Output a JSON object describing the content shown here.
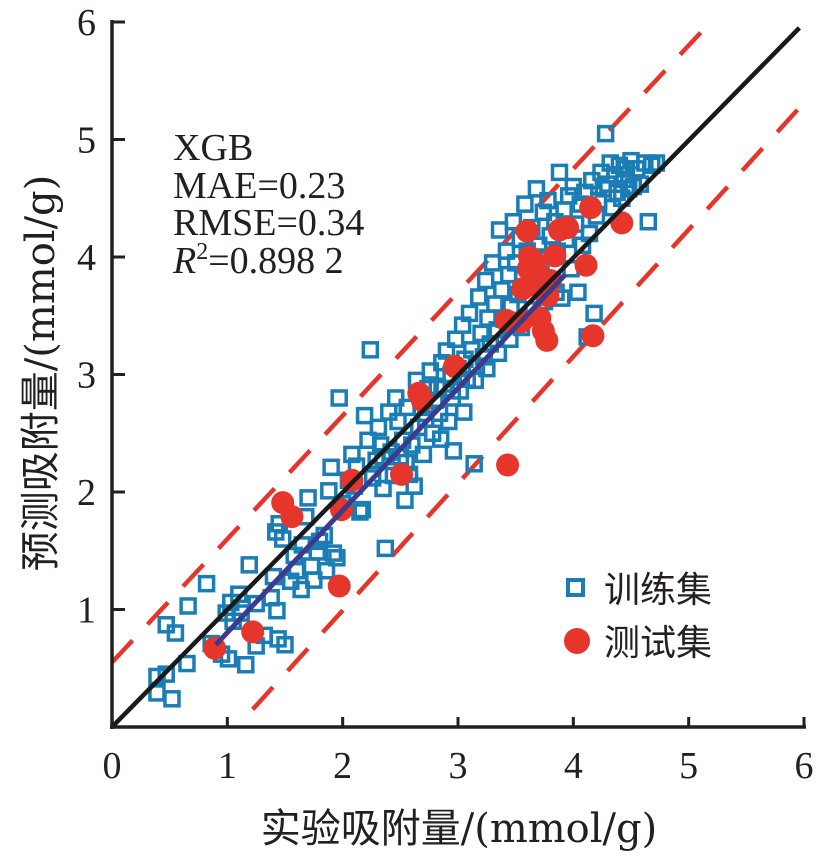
{
  "chart_data": {
    "type": "scatter",
    "title": "",
    "xlabel": "实验吸附量/(mmol/g)",
    "ylabel": "预测吸附量/(mmol/g)",
    "xlim": [
      0,
      6
    ],
    "ylim": [
      0,
      6
    ],
    "xticks": [
      "0",
      "1",
      "2",
      "3",
      "4",
      "5",
      "6"
    ],
    "yticks": [
      "1",
      "2",
      "3",
      "4",
      "5",
      "6"
    ],
    "grid": false,
    "legend_position": "bottom-right",
    "annotation": {
      "model": "XGB",
      "mae": "MAE=0.23",
      "rmse": "RMSE=0.34",
      "r2_symbol": "R",
      "r2_sup": "2",
      "r2_value": "=0.898 2"
    },
    "colors": {
      "train": "#1a7db5",
      "test": "#e6352b",
      "ideal_line": "#1a1a1a",
      "fit_line": "#3b3a8c",
      "bounds": "#e6352b",
      "axis": "#231f20"
    },
    "lines": {
      "ideal": {
        "name": "y=x",
        "x": [
          0,
          5.96
        ],
        "y": [
          0,
          5.95
        ]
      },
      "fit": {
        "name": "fit",
        "x": [
          0.9,
          3.93
        ],
        "y": [
          0.7,
          3.85
        ]
      },
      "upper_bound": {
        "name": "upper",
        "x": [
          0,
          5.19
        ],
        "y": [
          0.55,
          6.0
        ]
      },
      "lower_bound": {
        "name": "lower",
        "x": [
          1.22,
          5.96
        ],
        "y": [
          0.15,
          5.27
        ]
      }
    },
    "series": [
      {
        "name": "训练集",
        "marker": "square",
        "points": [
          [
            0.39,
            0.29
          ],
          [
            0.39,
            0.43
          ],
          [
            0.47,
            0.45
          ],
          [
            0.52,
            0.24
          ],
          [
            0.47,
            0.87
          ],
          [
            0.55,
            0.8
          ],
          [
            0.65,
            0.54
          ],
          [
            0.66,
            1.03
          ],
          [
            0.82,
            1.22
          ],
          [
            0.86,
            0.71
          ],
          [
            0.95,
            0.62
          ],
          [
            0.99,
            0.97
          ],
          [
            1.01,
            0.58
          ],
          [
            1.03,
            1.06
          ],
          [
            1.1,
            1.13
          ],
          [
            1.12,
            0.97
          ],
          [
            1.19,
            1.38
          ],
          [
            1.16,
            0.53
          ],
          [
            1.25,
            0.69
          ],
          [
            1.32,
            0.78
          ],
          [
            1.38,
            1.1
          ],
          [
            1.4,
            1.28
          ],
          [
            1.43,
            0.99
          ],
          [
            1.44,
            0.75
          ],
          [
            1.5,
            0.7
          ],
          [
            1.42,
            1.66
          ],
          [
            1.45,
            1.73
          ],
          [
            1.48,
            1.6
          ],
          [
            1.55,
            1.24
          ],
          [
            1.58,
            1.46
          ],
          [
            1.6,
            1.33
          ],
          [
            1.64,
            1.17
          ],
          [
            1.68,
            1.79
          ],
          [
            1.7,
            1.95
          ],
          [
            1.73,
            1.37
          ],
          [
            1.75,
            1.25
          ],
          [
            1.78,
            1.49
          ],
          [
            1.8,
            1.58
          ],
          [
            1.84,
            1.63
          ],
          [
            1.86,
            1.33
          ],
          [
            1.88,
            2.01
          ],
          [
            1.9,
            2.21
          ],
          [
            1.92,
            1.48
          ],
          [
            1.95,
            1.44
          ],
          [
            1.97,
            2.8
          ],
          [
            2.0,
            1.9
          ],
          [
            2.05,
            2.1
          ],
          [
            2.08,
            2.32
          ],
          [
            2.12,
            2.22
          ],
          [
            2.15,
            1.83
          ],
          [
            2.17,
            1.85
          ],
          [
            2.19,
            2.65
          ],
          [
            2.22,
            2.44
          ],
          [
            2.24,
            3.21
          ],
          [
            2.26,
            2.12
          ],
          [
            2.29,
            2.27
          ],
          [
            2.31,
            2.55
          ],
          [
            2.33,
            2.4
          ],
          [
            2.35,
            2.03
          ],
          [
            2.37,
            1.52
          ],
          [
            2.4,
            2.68
          ],
          [
            2.42,
            2.34
          ],
          [
            2.44,
            2.14
          ],
          [
            2.46,
            2.8
          ],
          [
            2.48,
            2.6
          ],
          [
            2.5,
            2.3
          ],
          [
            2.52,
            2.44
          ],
          [
            2.54,
            1.93
          ],
          [
            2.56,
            2.72
          ],
          [
            2.58,
            2.15
          ],
          [
            2.6,
            2.4
          ],
          [
            2.62,
            2.05
          ],
          [
            2.64,
            2.95
          ],
          [
            2.66,
            2.55
          ],
          [
            2.68,
            2.72
          ],
          [
            2.7,
            2.32
          ],
          [
            2.72,
            2.62
          ],
          [
            2.74,
            2.88
          ],
          [
            2.76,
            3.03
          ],
          [
            2.78,
            2.5
          ],
          [
            2.8,
            2.78
          ],
          [
            2.82,
            2.9
          ],
          [
            2.84,
            2.67
          ],
          [
            2.86,
            3.1
          ],
          [
            2.88,
            2.88
          ],
          [
            2.9,
            3.2
          ],
          [
            2.92,
            2.6
          ],
          [
            2.94,
            3.0
          ],
          [
            2.96,
            2.35
          ],
          [
            2.98,
            3.3
          ],
          [
            3.0,
            3.05
          ],
          [
            3.02,
            2.86
          ],
          [
            3.04,
            3.42
          ],
          [
            3.06,
            3.13
          ],
          [
            3.08,
            2.96
          ],
          [
            3.1,
            3.52
          ],
          [
            3.12,
            3.21
          ],
          [
            3.14,
            2.24
          ],
          [
            3.16,
            3.07
          ],
          [
            3.18,
            3.66
          ],
          [
            3.2,
            3.35
          ],
          [
            3.22,
            3.15
          ],
          [
            3.24,
            3.8
          ],
          [
            3.26,
            3.48
          ],
          [
            3.28,
            3.26
          ],
          [
            3.3,
            3.95
          ],
          [
            3.32,
            3.6
          ],
          [
            3.34,
            3.38
          ],
          [
            3.36,
            4.23
          ],
          [
            3.38,
            3.72
          ],
          [
            3.4,
            3.47
          ],
          [
            3.42,
            4.05
          ],
          [
            3.44,
            3.85
          ],
          [
            3.46,
            3.58
          ],
          [
            3.48,
            4.3
          ],
          [
            3.5,
            3.95
          ],
          [
            3.52,
            3.68
          ],
          [
            3.54,
            4.15
          ],
          [
            3.56,
            3.82
          ],
          [
            3.58,
            4.45
          ],
          [
            3.6,
            4.05
          ],
          [
            3.62,
            3.75
          ],
          [
            3.64,
            4.25
          ],
          [
            3.66,
            3.92
          ],
          [
            3.68,
            4.58
          ],
          [
            3.7,
            4.1
          ],
          [
            3.72,
            3.85
          ],
          [
            3.74,
            4.38
          ],
          [
            3.76,
            4.0
          ],
          [
            3.78,
            4.48
          ],
          [
            3.8,
            4.18
          ],
          [
            3.82,
            3.8
          ],
          [
            3.84,
            4.3
          ],
          [
            3.86,
            4.05
          ],
          [
            3.88,
            4.72
          ],
          [
            3.9,
            3.65
          ],
          [
            3.92,
            4.4
          ],
          [
            3.94,
            4.15
          ],
          [
            3.96,
            4.52
          ],
          [
            3.98,
            3.9
          ],
          [
            4.0,
            4.6
          ],
          [
            4.02,
            4.28
          ],
          [
            4.04,
            3.7
          ],
          [
            4.06,
            4.45
          ],
          [
            4.08,
            4.1
          ],
          [
            4.1,
            4.55
          ],
          [
            4.12,
            3.32
          ],
          [
            4.14,
            4.2
          ],
          [
            4.16,
            4.65
          ],
          [
            4.18,
            3.52
          ],
          [
            4.2,
            4.35
          ],
          [
            4.22,
            4.48
          ],
          [
            4.24,
            4.72
          ],
          [
            4.26,
            4.58
          ],
          [
            4.28,
            5.05
          ],
          [
            4.3,
            4.62
          ],
          [
            4.32,
            4.8
          ],
          [
            4.34,
            4.42
          ],
          [
            4.36,
            4.7
          ],
          [
            4.38,
            4.55
          ],
          [
            4.4,
            4.78
          ],
          [
            4.42,
            4.5
          ],
          [
            4.44,
            4.66
          ],
          [
            4.46,
            4.75
          ],
          [
            4.48,
            4.58
          ],
          [
            4.5,
            4.82
          ],
          [
            4.52,
            4.6
          ],
          [
            4.55,
            4.75
          ],
          [
            4.58,
            4.62
          ],
          [
            4.62,
            4.8
          ],
          [
            4.65,
            4.3
          ],
          [
            4.68,
            4.78
          ],
          [
            4.72,
            4.8
          ],
          [
            3.05,
            2.68
          ],
          [
            3.15,
            2.95
          ],
          [
            3.25,
            3.05
          ],
          [
            3.35,
            3.18
          ],
          [
            2.95,
            2.8
          ],
          [
            2.85,
            2.45
          ],
          [
            2.55,
            2.25
          ],
          [
            2.35,
            2.3
          ],
          [
            2.1,
            2.05
          ],
          [
            1.65,
            1.55
          ],
          [
            1.25,
            1.05
          ],
          [
            1.05,
            0.9
          ],
          [
            3.45,
            3.3
          ],
          [
            3.55,
            3.4
          ],
          [
            3.65,
            3.55
          ],
          [
            3.75,
            3.62
          ],
          [
            3.85,
            3.7
          ]
        ]
      },
      {
        "name": "测试集",
        "marker": "circle",
        "points": [
          [
            0.89,
            0.67
          ],
          [
            1.22,
            0.81
          ],
          [
            1.97,
            1.2
          ],
          [
            1.48,
            1.91
          ],
          [
            1.56,
            1.79
          ],
          [
            1.99,
            1.85
          ],
          [
            2.08,
            2.1
          ],
          [
            2.51,
            2.15
          ],
          [
            2.66,
            2.84
          ],
          [
            2.69,
            2.78
          ],
          [
            2.97,
            3.07
          ],
          [
            3.43,
            2.23
          ],
          [
            3.42,
            3.46
          ],
          [
            3.55,
            3.45
          ],
          [
            3.56,
            3.73
          ],
          [
            3.61,
            3.9
          ],
          [
            3.6,
            4.22
          ],
          [
            3.71,
            3.48
          ],
          [
            3.7,
            3.85
          ],
          [
            3.74,
            3.37
          ],
          [
            3.77,
            3.29
          ],
          [
            3.78,
            3.67
          ],
          [
            3.8,
            3.8
          ],
          [
            3.62,
            4.0
          ],
          [
            3.67,
            3.95
          ],
          [
            3.88,
            4.23
          ],
          [
            3.95,
            4.25
          ],
          [
            4.11,
            3.93
          ],
          [
            4.15,
            4.42
          ],
          [
            4.17,
            3.33
          ],
          [
            4.42,
            4.29
          ],
          [
            3.84,
            4.01
          ],
          [
            3.72,
            3.72
          ]
        ]
      }
    ],
    "legend": [
      {
        "label": "训练集",
        "marker": "square"
      },
      {
        "label": "测试集",
        "marker": "circle"
      }
    ]
  }
}
